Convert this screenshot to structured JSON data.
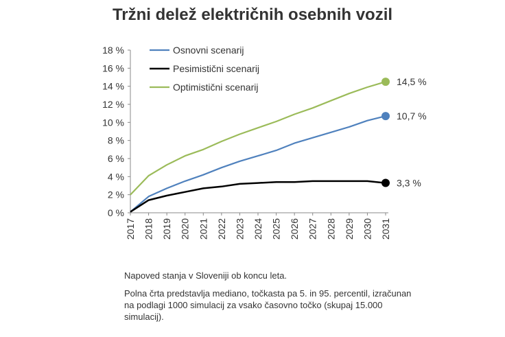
{
  "chart_data": {
    "type": "line",
    "title": "Tržni delež električnih osebnih vozil",
    "xlabel": "",
    "ylabel": "",
    "categories": [
      "2017",
      "2018",
      "2019",
      "2020",
      "2021",
      "2022",
      "2023",
      "2024",
      "2025",
      "2026",
      "2027",
      "2028",
      "2029",
      "2030",
      "2031"
    ],
    "yticks": [
      "0 %",
      "2 %",
      "4 %",
      "6 %",
      "8 %",
      "10 %",
      "12 %",
      "14 %",
      "16 %",
      "18 %"
    ],
    "ylim": [
      0,
      18
    ],
    "grid": false,
    "legend": "top-left",
    "series": [
      {
        "name": "Osnovni scenarij",
        "color": "#4F81BD",
        "values": [
          0.1,
          1.8,
          2.7,
          3.5,
          4.2,
          5.0,
          5.7,
          6.3,
          6.9,
          7.7,
          8.3,
          8.9,
          9.5,
          10.2,
          10.7
        ],
        "end_label": "10,7 %"
      },
      {
        "name": "Pesimistični scenarij",
        "color": "#000000",
        "values": [
          0.1,
          1.4,
          1.9,
          2.3,
          2.7,
          2.9,
          3.2,
          3.3,
          3.4,
          3.4,
          3.5,
          3.5,
          3.5,
          3.5,
          3.3
        ],
        "end_label": "3,3 %"
      },
      {
        "name": "Optimistični scenarij",
        "color": "#9BBB59",
        "values": [
          2.0,
          4.1,
          5.3,
          6.3,
          7.0,
          7.9,
          8.7,
          9.4,
          10.1,
          10.9,
          11.6,
          12.4,
          13.2,
          13.9,
          14.5
        ],
        "end_label": "14,5 %"
      }
    ]
  },
  "notes": {
    "line1": "Napoved stanja v Sloveniji ob koncu leta.",
    "line2": "Polna črta predstavlja mediano, točkasta pa 5. in 95. percentil, izračunan na podlagi 1000 simulacij za vsako časovno točko (skupaj 15.000 simulacij)."
  }
}
